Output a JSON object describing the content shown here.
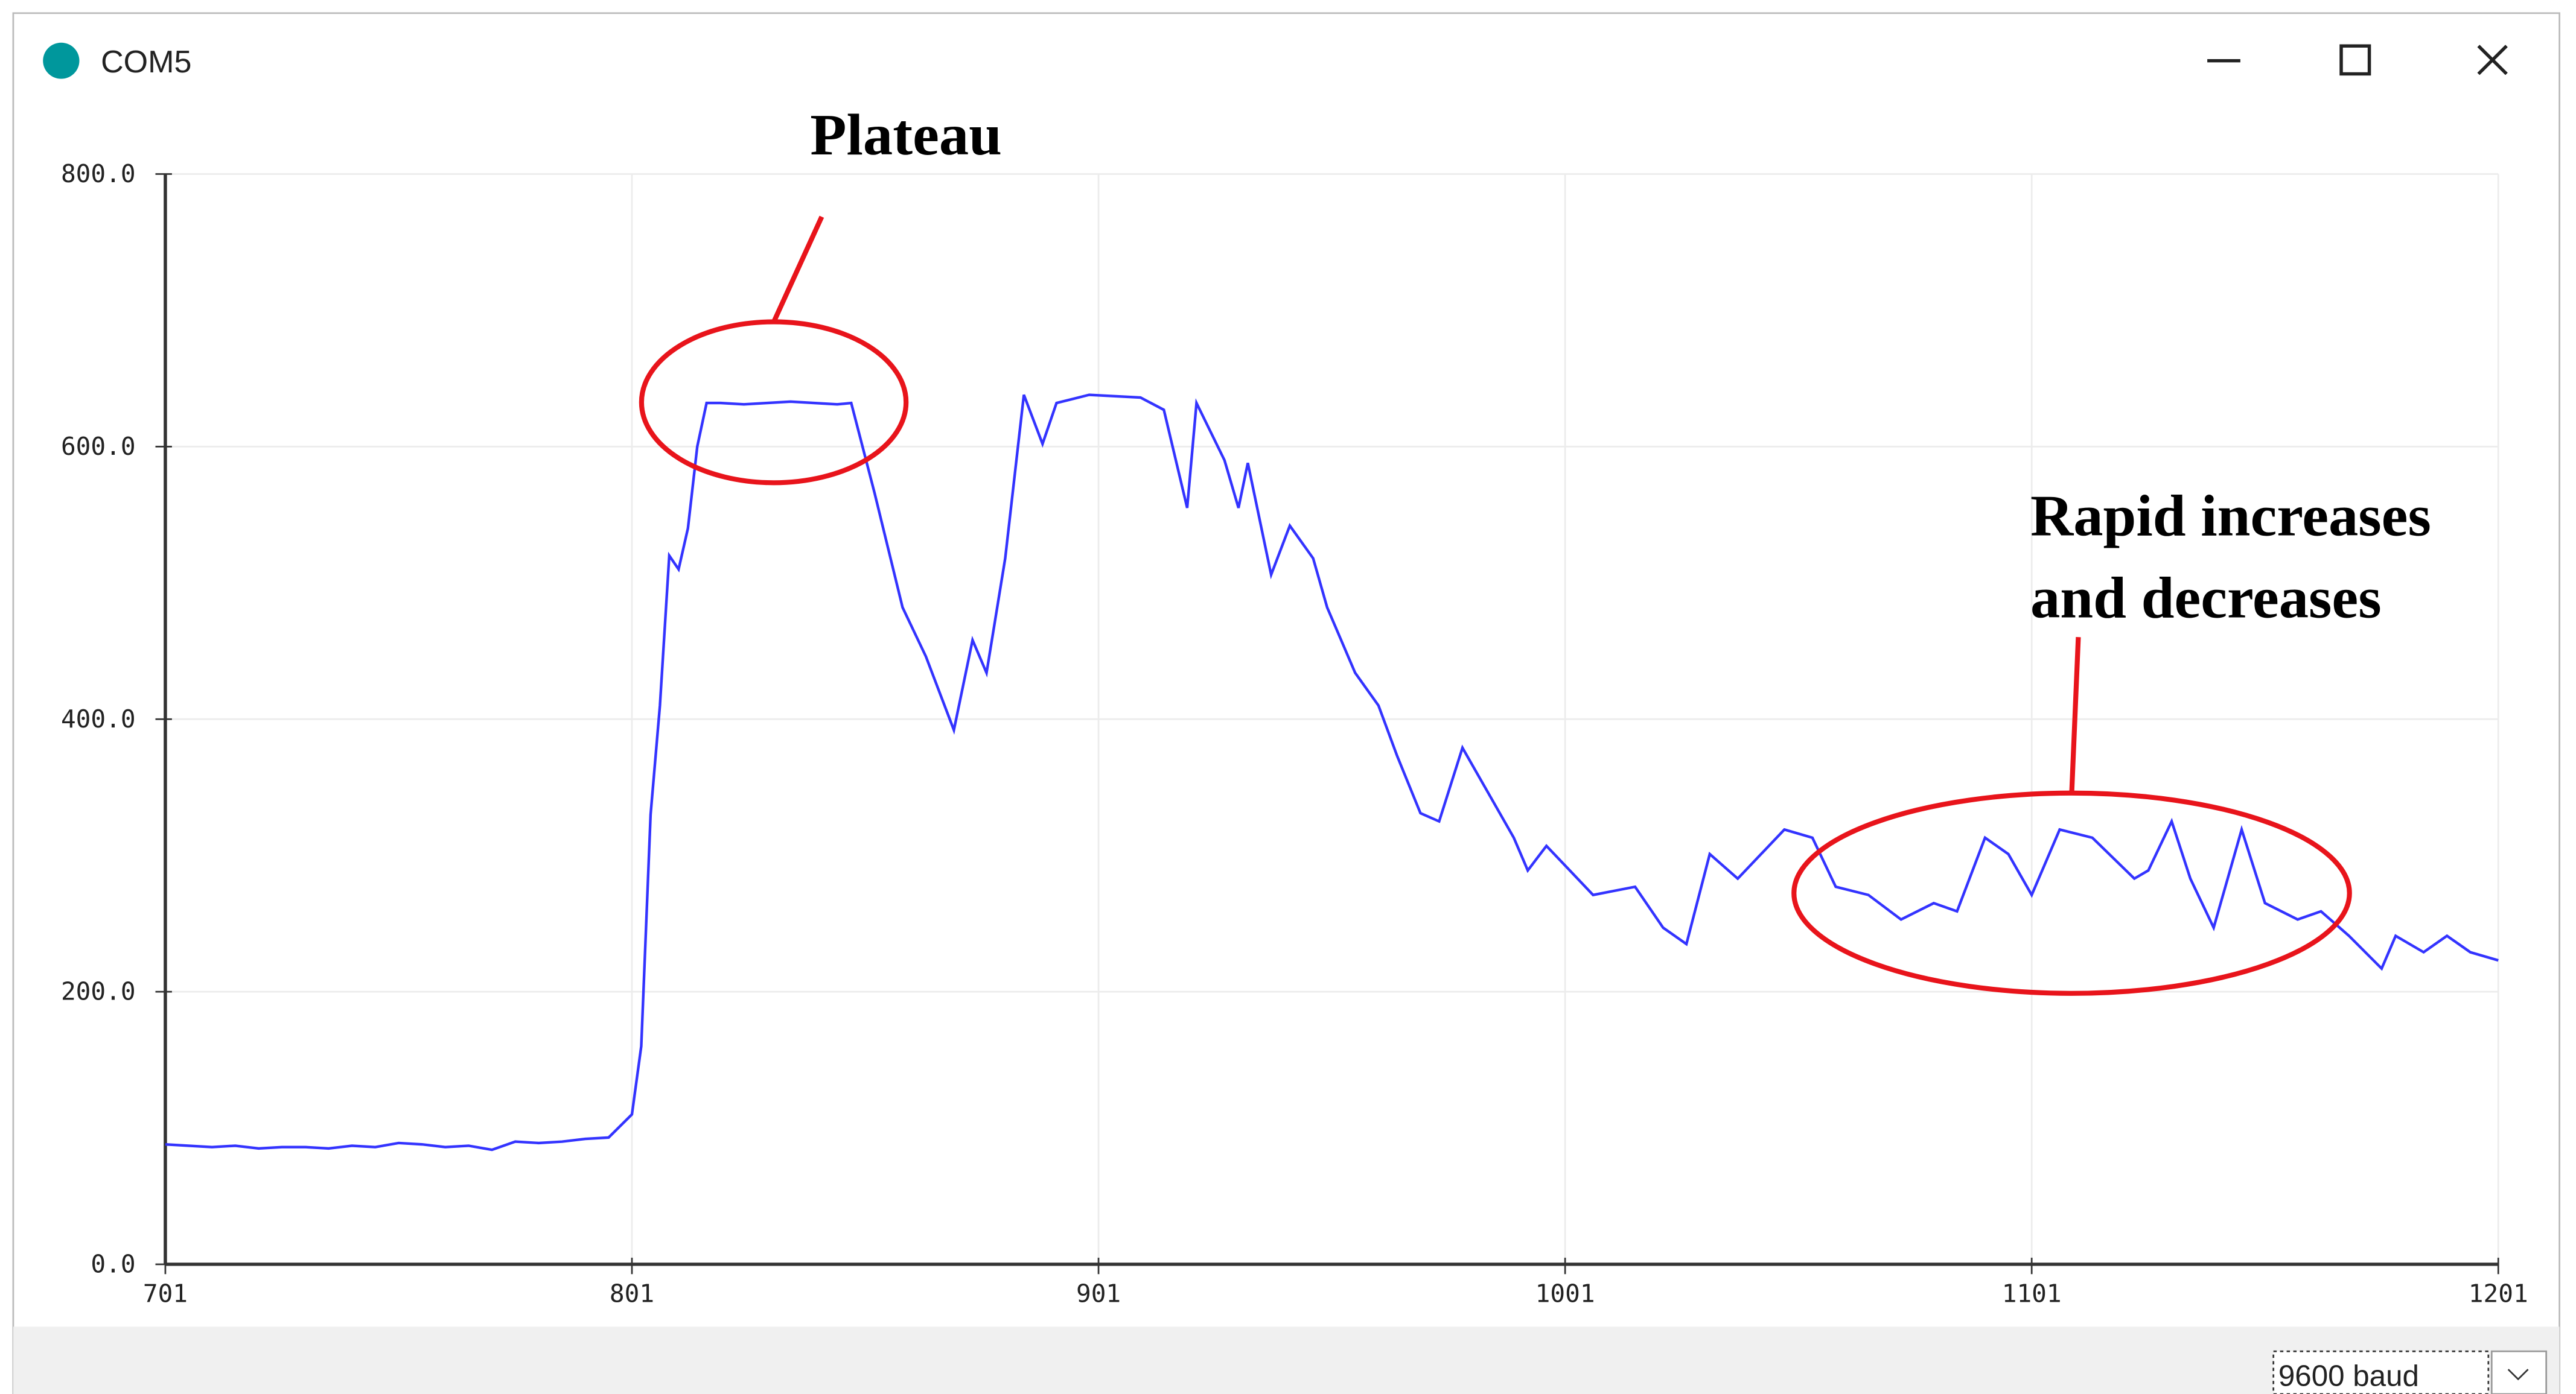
{
  "window": {
    "title": "COM5",
    "baud": "9600 baud"
  },
  "chart_data": {
    "type": "line",
    "annotations": [
      "Plateau",
      "Rapid increases",
      "and decreases"
    ],
    "x": [
      701,
      706,
      711,
      716,
      721,
      726,
      731,
      736,
      741,
      746,
      751,
      756,
      761,
      766,
      771,
      776,
      781,
      786,
      791,
      796,
      801,
      803,
      805,
      807,
      809,
      811,
      813,
      815,
      817,
      820,
      825,
      830,
      835,
      840,
      845,
      848,
      853,
      859,
      864,
      870,
      874,
      877,
      881,
      885,
      889,
      892,
      899,
      910,
      915,
      920,
      922,
      928,
      931,
      933,
      938,
      942,
      947,
      950,
      956,
      961,
      965,
      970,
      974,
      979,
      984,
      990,
      993,
      997,
      1002,
      1007,
      1016,
      1022,
      1027,
      1032,
      1038,
      1043,
      1048,
      1054,
      1059,
      1066,
      1073,
      1080,
      1085,
      1091,
      1096,
      1101,
      1107,
      1114,
      1123,
      1126,
      1131,
      1135,
      1140,
      1146,
      1151,
      1158,
      1163,
      1169,
      1176,
      1179,
      1185,
      1190,
      1195,
      1201
    ],
    "series": [
      {
        "color": "#3333ff",
        "values": [
          88,
          87,
          86,
          87,
          85,
          86,
          86,
          85,
          87,
          86,
          89,
          88,
          86,
          87,
          84,
          90,
          89,
          90,
          92,
          93,
          110,
          160,
          330,
          410,
          520,
          510,
          540,
          600,
          632,
          632,
          631,
          632,
          633,
          632,
          631,
          632,
          566,
          482,
          446,
          392,
          458,
          434,
          518,
          638,
          602,
          632,
          638,
          636,
          627,
          555,
          632,
          590,
          555,
          588,
          506,
          542,
          518,
          482,
          434,
          410,
          373,
          331,
          325,
          379,
          349,
          313,
          289,
          307,
          289,
          271,
          277,
          247,
          235,
          301,
          283,
          301,
          319,
          313,
          277,
          271,
          253,
          265,
          259,
          313,
          301,
          271,
          319,
          313,
          283,
          289,
          325,
          283,
          247,
          319,
          265,
          253,
          259,
          241,
          217,
          241,
          229,
          241,
          229,
          223
        ]
      }
    ],
    "xlim": [
      701,
      1201
    ],
    "ylim": [
      0,
      800
    ],
    "xticks": [
      701,
      801,
      901,
      1001,
      1101,
      1201
    ],
    "yticks": [
      {
        "value": 0,
        "label": "0.0"
      },
      {
        "value": 200,
        "label": "200.0"
      },
      {
        "value": 400,
        "label": "400.0"
      },
      {
        "value": 600,
        "label": "600.0"
      },
      {
        "value": 800,
        "label": "800.0"
      }
    ],
    "grid": true
  }
}
